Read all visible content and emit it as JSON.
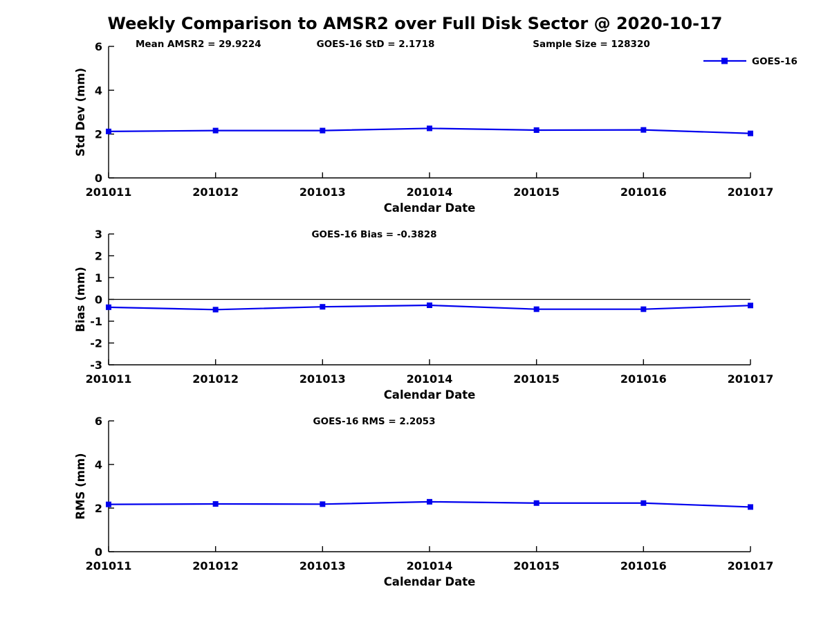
{
  "figure": {
    "title": "Weekly Comparison to AMSR2 over Full Disk Sector @ 2020-10-17",
    "background": "#ffffff",
    "text_color": "#000000",
    "line_color": "#0000EE",
    "axis_color": "#000000"
  },
  "legend": {
    "label": "GOES-16",
    "position": "top-right",
    "marker": "filled-square",
    "line_color": "#0000EE"
  },
  "chart_data": [
    {
      "type": "line",
      "id": "stddev",
      "title": "",
      "ylabel": "Std Dev (mm)",
      "xlabel": "Calendar Date",
      "ylim": [
        0,
        6
      ],
      "yticks": [
        0,
        2,
        4,
        6
      ],
      "grid": false,
      "zero_line": false,
      "legend": true,
      "categories": [
        "201011",
        "201012",
        "201013",
        "201014",
        "201015",
        "201016",
        "201017"
      ],
      "series": [
        {
          "name": "GOES-16",
          "values": [
            2.12,
            2.16,
            2.16,
            2.26,
            2.18,
            2.19,
            2.03
          ]
        }
      ],
      "annotations": [
        "Mean AMSR2 = 29.9224",
        "GOES-16 StD = 2.1718",
        "Sample Size = 128320"
      ]
    },
    {
      "type": "line",
      "id": "bias",
      "title": "",
      "ylabel": "Bias (mm)",
      "xlabel": "Calendar Date",
      "ylim": [
        -3,
        3
      ],
      "yticks": [
        3,
        2,
        1,
        0,
        -1,
        -2,
        -3
      ],
      "grid": false,
      "zero_line": true,
      "legend": false,
      "categories": [
        "201011",
        "201012",
        "201013",
        "201014",
        "201015",
        "201016",
        "201017"
      ],
      "series": [
        {
          "name": "GOES-16",
          "values": [
            -0.36,
            -0.47,
            -0.34,
            -0.27,
            -0.45,
            -0.45,
            -0.28
          ]
        }
      ],
      "annotations": [
        "GOES-16 Bias  = -0.3828"
      ]
    },
    {
      "type": "line",
      "id": "rms",
      "title": "",
      "ylabel": "RMS (mm)",
      "xlabel": "Calendar Date",
      "ylim": [
        0,
        6
      ],
      "yticks": [
        0,
        2,
        4,
        6
      ],
      "grid": false,
      "zero_line": false,
      "legend": false,
      "categories": [
        "201011",
        "201012",
        "201013",
        "201014",
        "201015",
        "201016",
        "201017"
      ],
      "series": [
        {
          "name": "GOES-16",
          "values": [
            2.17,
            2.19,
            2.18,
            2.29,
            2.23,
            2.23,
            2.05
          ]
        }
      ],
      "annotations": [
        "GOES-16 RMS = 2.2053"
      ]
    }
  ]
}
